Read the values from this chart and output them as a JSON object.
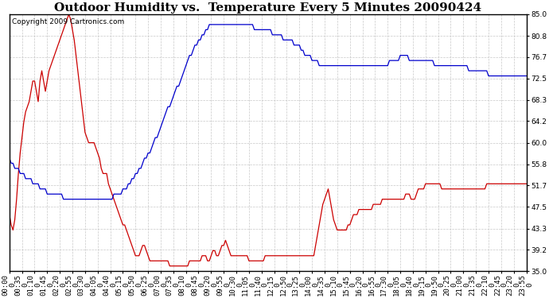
{
  "title": "Outdoor Humidity vs.  Temperature Every 5 Minutes 20090424",
  "copyright": "Copyright 2009 Cartronics.com",
  "ymin": 35.0,
  "ymax": 85.0,
  "yticks": [
    85.0,
    80.8,
    76.7,
    72.5,
    68.3,
    64.2,
    60.0,
    55.8,
    51.7,
    47.5,
    43.3,
    39.2,
    35.0
  ],
  "background_color": "#ffffff",
  "grid_color": "#c8c8c8",
  "red_color": "#cc0000",
  "blue_color": "#0000cc",
  "title_fontsize": 11,
  "copyright_fontsize": 6.5,
  "tick_fontsize": 6.5,
  "red_data": [
    46,
    44,
    43,
    45,
    49,
    54,
    58,
    61,
    64,
    66,
    67,
    68,
    70,
    72,
    72,
    70,
    68,
    72,
    74,
    72,
    70,
    72,
    74,
    75,
    76,
    77,
    78,
    79,
    80,
    81,
    82,
    83,
    84,
    85,
    84,
    82,
    80,
    77,
    74,
    71,
    68,
    65,
    62,
    61,
    60,
    60,
    60,
    60,
    59,
    58,
    57,
    55,
    54,
    54,
    54,
    52,
    51,
    50,
    49,
    48,
    47,
    46,
    45,
    44,
    44,
    43,
    42,
    41,
    40,
    39,
    38,
    38,
    38,
    39,
    40,
    40,
    39,
    38,
    37,
    37,
    37,
    37,
    37,
    37,
    37,
    37,
    37,
    37,
    37,
    36,
    36,
    36,
    36,
    36,
    36,
    36,
    36,
    36,
    36,
    36,
    37,
    37,
    37,
    37,
    37,
    37,
    37,
    38,
    38,
    38,
    37,
    37,
    38,
    39,
    39,
    38,
    38,
    39,
    40,
    40,
    41,
    40,
    39,
    38,
    38,
    38,
    38,
    38,
    38,
    38,
    38,
    38,
    38,
    37,
    37,
    37,
    37,
    37,
    37,
    37,
    37,
    37,
    38,
    38,
    38,
    38,
    38,
    38,
    38,
    38,
    38,
    38,
    38,
    38,
    38,
    38,
    38,
    38,
    38,
    38,
    38,
    38,
    38,
    38,
    38,
    38,
    38,
    38,
    38,
    38,
    40,
    42,
    44,
    46,
    48,
    49,
    50,
    51,
    49,
    47,
    45,
    44,
    43,
    43,
    43,
    43,
    43,
    43,
    44,
    44,
    45,
    46,
    46,
    46,
    47,
    47,
    47,
    47,
    47,
    47,
    47,
    47,
    48,
    48,
    48,
    48,
    48,
    49,
    49,
    49,
    49,
    49,
    49,
    49,
    49,
    49,
    49,
    49,
    49,
    49,
    50,
    50,
    50,
    49,
    49,
    49,
    50,
    51,
    51,
    51,
    51,
    52,
    52,
    52,
    52,
    52,
    52,
    52,
    52,
    52,
    51,
    51,
    51,
    51,
    51,
    51,
    51,
    51,
    51,
    51,
    51,
    51,
    51,
    51,
    51,
    51,
    51,
    51,
    51,
    51,
    51,
    51,
    51,
    51,
    51,
    52,
    52,
    52,
    52,
    52,
    52,
    52,
    52,
    52,
    52,
    52,
    52,
    52,
    52,
    52,
    52,
    52,
    52,
    52,
    52,
    52,
    52,
    52
  ],
  "blue_data": [
    57,
    56,
    56,
    55,
    55,
    55,
    54,
    54,
    54,
    53,
    53,
    53,
    53,
    52,
    52,
    52,
    52,
    51,
    51,
    51,
    51,
    50,
    50,
    50,
    50,
    50,
    50,
    50,
    50,
    50,
    49,
    49,
    49,
    49,
    49,
    49,
    49,
    49,
    49,
    49,
    49,
    49,
    49,
    49,
    49,
    49,
    49,
    49,
    49,
    49,
    49,
    49,
    49,
    49,
    49,
    49,
    49,
    49,
    50,
    50,
    50,
    50,
    50,
    51,
    51,
    51,
    52,
    52,
    53,
    53,
    54,
    54,
    55,
    55,
    56,
    57,
    57,
    58,
    58,
    59,
    60,
    61,
    61,
    62,
    63,
    64,
    65,
    66,
    67,
    67,
    68,
    69,
    70,
    71,
    71,
    72,
    73,
    74,
    75,
    76,
    77,
    77,
    78,
    79,
    79,
    80,
    80,
    81,
    81,
    82,
    82,
    83,
    83,
    83,
    83,
    83,
    83,
    83,
    83,
    83,
    83,
    83,
    83,
    83,
    83,
    83,
    83,
    83,
    83,
    83,
    83,
    83,
    83,
    83,
    83,
    83,
    82,
    82,
    82,
    82,
    82,
    82,
    82,
    82,
    82,
    82,
    81,
    81,
    81,
    81,
    81,
    81,
    80,
    80,
    80,
    80,
    80,
    80,
    79,
    79,
    79,
    79,
    78,
    78,
    77,
    77,
    77,
    77,
    76,
    76,
    76,
    76,
    75,
    75,
    75,
    75,
    75,
    75,
    75,
    75,
    75,
    75,
    75,
    75,
    75,
    75,
    75,
    75,
    75,
    75,
    75,
    75,
    75,
    75,
    75,
    75,
    75,
    75,
    75,
    75,
    75,
    75,
    75,
    75,
    75,
    75,
    75,
    75,
    75,
    75,
    75,
    76,
    76,
    76,
    76,
    76,
    76,
    77,
    77,
    77,
    77,
    77,
    76,
    76,
    76,
    76,
    76,
    76,
    76,
    76,
    76,
    76,
    76,
    76,
    76,
    76,
    75,
    75,
    75,
    75,
    75,
    75,
    75,
    75,
    75,
    75,
    75,
    75,
    75,
    75,
    75,
    75,
    75,
    75,
    75,
    74,
    74,
    74,
    74,
    74,
    74,
    74,
    74,
    74,
    74,
    74,
    73,
    73,
    73,
    73,
    73,
    73,
    73,
    73,
    73,
    73,
    73,
    73,
    73,
    73,
    73,
    73,
    73,
    73,
    73,
    73,
    73,
    73
  ]
}
